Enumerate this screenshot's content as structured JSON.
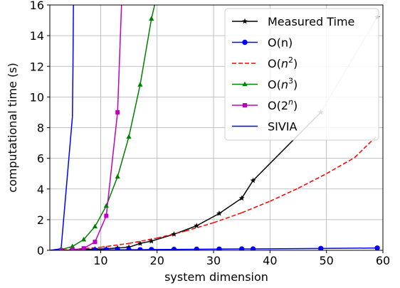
{
  "chart_data": {
    "type": "line",
    "xlabel": "system dimension",
    "ylabel": "computational time (s)",
    "xlim": [
      1,
      60
    ],
    "ylim": [
      0,
      16
    ],
    "xticks": [
      10,
      20,
      30,
      40,
      50,
      60
    ],
    "yticks": [
      0,
      2,
      4,
      6,
      8,
      10,
      12,
      14,
      16
    ],
    "grid": true,
    "legend_position": "top-right",
    "series": [
      {
        "name": "Measured Time",
        "color": "#000000",
        "dash": "solid",
        "marker": "star",
        "x": [
          3,
          5,
          7,
          9,
          11,
          13,
          15,
          17,
          19,
          23,
          27,
          31,
          35,
          37,
          49,
          59
        ],
        "y": [
          0.0,
          0.0,
          0.05,
          0.08,
          0.1,
          0.15,
          0.2,
          0.45,
          0.6,
          1.05,
          1.6,
          2.4,
          3.4,
          4.55,
          9.0,
          15.2
        ],
        "segment_colors": {
          "49-59": "#c8c8c8"
        }
      },
      {
        "name": "O(n)",
        "color": "#0000ff",
        "dash": "solid",
        "marker": "circle",
        "x": [
          3,
          5,
          7,
          9,
          11,
          13,
          15,
          17,
          19,
          23,
          27,
          31,
          35,
          37,
          49,
          59
        ],
        "y": [
          0.01,
          0.01,
          0.02,
          0.02,
          0.03,
          0.03,
          0.04,
          0.04,
          0.05,
          0.06,
          0.07,
          0.08,
          0.09,
          0.09,
          0.12,
          0.15
        ]
      },
      {
        "name_html": "O(n²)",
        "name_base": "O(",
        "name_var": "n",
        "name_sup": "2",
        "name_close": ")",
        "color": "#ff0000",
        "dash": "dashed",
        "marker": "none",
        "x": [
          1,
          5,
          10,
          15,
          20,
          25,
          30,
          35,
          40,
          45,
          50,
          55,
          59
        ],
        "y": [
          0.0,
          0.05,
          0.2,
          0.45,
          0.8,
          1.25,
          1.8,
          2.45,
          3.2,
          4.05,
          5.0,
          6.05,
          7.5
        ]
      },
      {
        "name_base": "O(",
        "name_var": "n",
        "name_sup": "3",
        "name_close": ")",
        "color": "#008000",
        "dash": "solid",
        "marker": "triangle",
        "x": [
          3,
          5,
          7,
          9,
          11,
          13,
          15,
          17,
          19,
          20.5
        ],
        "y": [
          0.05,
          0.25,
          0.7,
          1.55,
          2.9,
          4.8,
          7.4,
          10.8,
          15.1,
          17.5
        ]
      },
      {
        "name_base": "O(",
        "name_var": "2",
        "name_sup": "n",
        "name_close": ")",
        "color": "#bf00bf",
        "dash": "solid",
        "marker": "square",
        "x": [
          3,
          5,
          7,
          9,
          11,
          13,
          13.8
        ],
        "y": [
          0.0,
          0.03,
          0.13,
          0.55,
          2.25,
          9.0,
          17.0
        ]
      },
      {
        "name": "SIVIA",
        "color": "#0000ff",
        "dash": "solid",
        "marker": "none",
        "x": [
          1,
          3,
          5,
          5.1,
          5.2
        ],
        "y": [
          0.0,
          0.1,
          8.7,
          12.0,
          17.0
        ]
      }
    ]
  }
}
